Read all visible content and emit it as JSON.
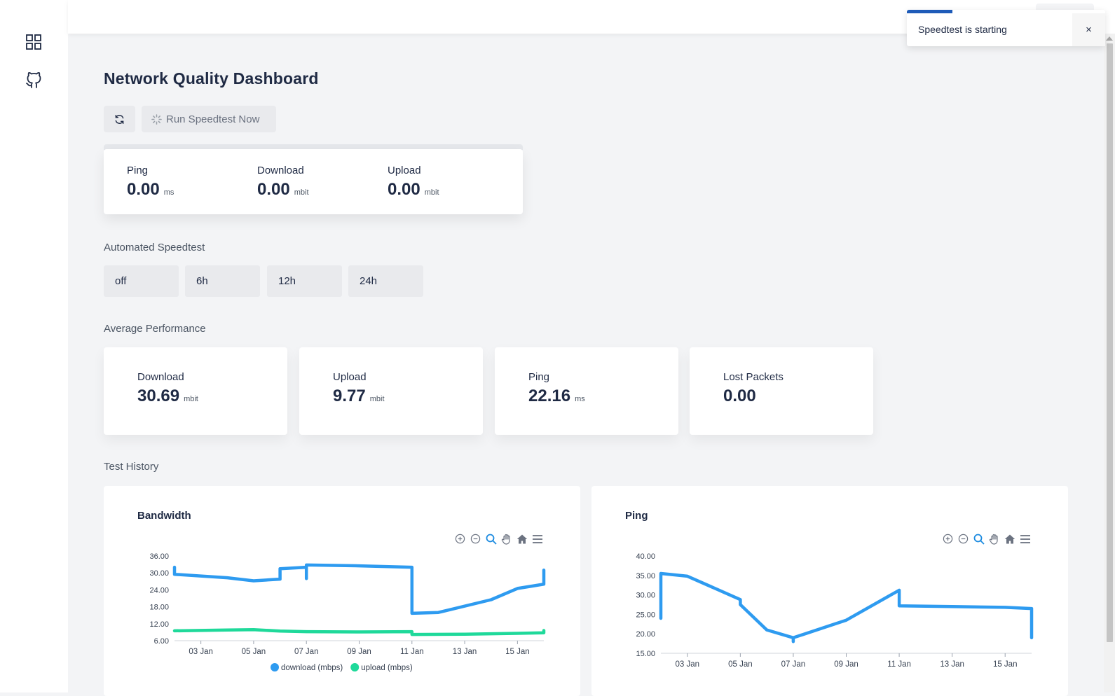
{
  "toast": {
    "message": "Speedtest is starting",
    "close_label": "×",
    "progress": 0.23
  },
  "page": {
    "title": "Network Quality Dashboard"
  },
  "toolbar": {
    "run_label": "Run Speedtest Now"
  },
  "current": {
    "ping": {
      "label": "Ping",
      "value": "0.00",
      "unit": "ms"
    },
    "download": {
      "label": "Download",
      "value": "0.00",
      "unit": "mbit"
    },
    "upload": {
      "label": "Upload",
      "value": "0.00",
      "unit": "mbit"
    }
  },
  "schedule": {
    "label": "Automated Speedtest",
    "options": [
      "off",
      "6h",
      "12h",
      "24h"
    ]
  },
  "average": {
    "label": "Average Performance",
    "download": {
      "label": "Download",
      "value": "30.69",
      "unit": "mbit"
    },
    "upload": {
      "label": "Upload",
      "value": "9.77",
      "unit": "mbit"
    },
    "ping": {
      "label": "Ping",
      "value": "22.16",
      "unit": "ms"
    },
    "lost": {
      "label": "Lost Packets",
      "value": "0.00"
    }
  },
  "history": {
    "label": "Test History"
  },
  "icons": [
    "dashboard-icon",
    "github-icon",
    "refresh-icon",
    "spinner-icon",
    "zoom-in-icon",
    "zoom-out-icon",
    "zoom-select-icon",
    "pan-icon",
    "home-icon",
    "menu-icon"
  ],
  "colors": {
    "download": "#2e9bf0",
    "upload": "#1fd99a",
    "ping": "#2e9bf0",
    "toast_progress": "#1e5bb8"
  },
  "chart_data": [
    {
      "type": "line",
      "title": "Bandwidth",
      "x_ticks": [
        "03 Jan",
        "05 Jan",
        "07 Jan",
        "09 Jan",
        "11 Jan",
        "13 Jan",
        "15 Jan"
      ],
      "y_ticks": [
        "6.00",
        "12.00",
        "18.00",
        "24.00",
        "30.00",
        "36.00"
      ],
      "ylim": [
        6,
        36
      ],
      "xlim": [
        "2023-01-02",
        "2023-01-16"
      ],
      "legend": "bottom",
      "series": [
        {
          "name": "download (mbps)",
          "color": "#2e9bf0",
          "x": [
            "2023-01-02",
            "2023-01-02",
            "2023-01-04",
            "2023-01-05",
            "2023-01-06",
            "2023-01-06",
            "2023-01-07",
            "2023-01-07",
            "2023-01-07",
            "2023-01-07",
            "2023-01-09",
            "2023-01-11",
            "2023-01-11",
            "2023-01-12",
            "2023-01-14",
            "2023-01-15",
            "2023-01-16",
            "2023-01-16"
          ],
          "y": [
            32,
            29.5,
            28.3,
            27.2,
            27.8,
            31.5,
            32,
            32.8,
            28,
            32.8,
            32.5,
            32,
            15.7,
            16,
            20.5,
            24.5,
            26,
            31
          ]
        },
        {
          "name": "upload (mbps)",
          "color": "#1fd99a",
          "x": [
            "2023-01-02",
            "2023-01-04",
            "2023-01-05",
            "2023-01-06",
            "2023-01-07",
            "2023-01-09",
            "2023-01-11",
            "2023-01-11",
            "2023-01-13",
            "2023-01-15",
            "2023-01-16",
            "2023-01-16"
          ],
          "y": [
            9.5,
            9.8,
            9.9,
            9.4,
            9.2,
            9.1,
            9.2,
            8.2,
            8.3,
            8.6,
            8.8,
            9.6
          ]
        }
      ]
    },
    {
      "type": "line",
      "title": "Ping",
      "x_ticks": [
        "03 Jan",
        "05 Jan",
        "07 Jan",
        "09 Jan",
        "11 Jan",
        "13 Jan",
        "15 Jan"
      ],
      "y_ticks": [
        "15.00",
        "20.00",
        "25.00",
        "30.00",
        "35.00",
        "40.00"
      ],
      "ylim": [
        15,
        40
      ],
      "xlim": [
        "2023-01-02",
        "2023-01-16"
      ],
      "series": [
        {
          "name": "ping",
          "color": "#2e9bf0",
          "x": [
            "2023-01-02",
            "2023-01-02",
            "2023-01-03",
            "2023-01-05",
            "2023-01-05",
            "2023-01-06",
            "2023-01-07",
            "2023-01-07",
            "2023-01-07",
            "2023-01-09",
            "2023-01-11",
            "2023-01-11",
            "2023-01-11",
            "2023-01-13",
            "2023-01-15",
            "2023-01-16",
            "2023-01-16"
          ],
          "y": [
            24,
            35.5,
            34.8,
            28.8,
            27.5,
            21,
            19,
            18,
            19,
            23.5,
            31.2,
            31,
            27.2,
            27,
            26.8,
            26.5,
            19
          ]
        }
      ]
    }
  ]
}
